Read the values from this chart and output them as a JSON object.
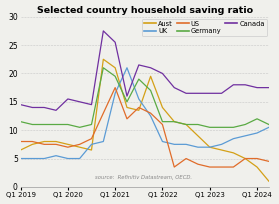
{
  "title": "Selected country household saving ratio",
  "source_text": "source:  Refinitiv Datastream, OECD.",
  "ylim": [
    0,
    30
  ],
  "yticks": [
    0,
    5,
    10,
    15,
    20,
    25,
    30
  ],
  "xtick_labels": [
    "Q1 2019",
    "Q1 2020",
    "Q1 2021",
    "Q1 2022",
    "Q1 2023",
    "Q1 2024"
  ],
  "background_color": "#f0f0ec",
  "legend_facecolor": "#f0f0ec",
  "series": {
    "Aust": {
      "color": "#d4a017",
      "data": [
        6.5,
        7.5,
        8.0,
        8.0,
        7.5,
        7.0,
        6.5,
        22.5,
        21.0,
        14.0,
        13.5,
        19.5,
        14.0,
        11.5,
        11.0,
        9.0,
        7.0,
        6.5,
        6.0,
        5.0,
        3.5,
        1.0
      ]
    },
    "UK": {
      "color": "#5b9bd5",
      "data": [
        5.0,
        5.0,
        5.0,
        5.5,
        5.0,
        5.0,
        7.5,
        8.0,
        16.5,
        21.0,
        15.5,
        12.5,
        8.0,
        7.5,
        7.5,
        7.0,
        7.0,
        7.5,
        8.5,
        9.0,
        9.5,
        10.5
      ]
    },
    "US": {
      "color": "#e06c2a",
      "data": [
        8.0,
        8.0,
        7.5,
        7.5,
        7.0,
        7.5,
        8.5,
        13.0,
        17.5,
        12.0,
        14.0,
        13.0,
        11.0,
        3.5,
        5.0,
        4.0,
        3.5,
        3.5,
        3.5,
        5.0,
        5.0,
        4.5
      ]
    },
    "Germany": {
      "color": "#5aaa44",
      "data": [
        11.5,
        11.0,
        11.0,
        11.0,
        11.0,
        10.5,
        11.0,
        21.0,
        19.5,
        15.0,
        19.0,
        17.0,
        11.5,
        11.5,
        11.0,
        11.0,
        10.5,
        10.5,
        10.5,
        11.0,
        12.0,
        11.0
      ]
    },
    "Canada": {
      "color": "#7030a0",
      "data": [
        14.5,
        14.0,
        14.0,
        13.5,
        15.5,
        15.0,
        14.5,
        27.5,
        25.5,
        16.0,
        21.5,
        21.0,
        20.0,
        17.5,
        16.5,
        16.5,
        16.5,
        16.5,
        18.0,
        18.0,
        17.5,
        17.5
      ]
    }
  }
}
